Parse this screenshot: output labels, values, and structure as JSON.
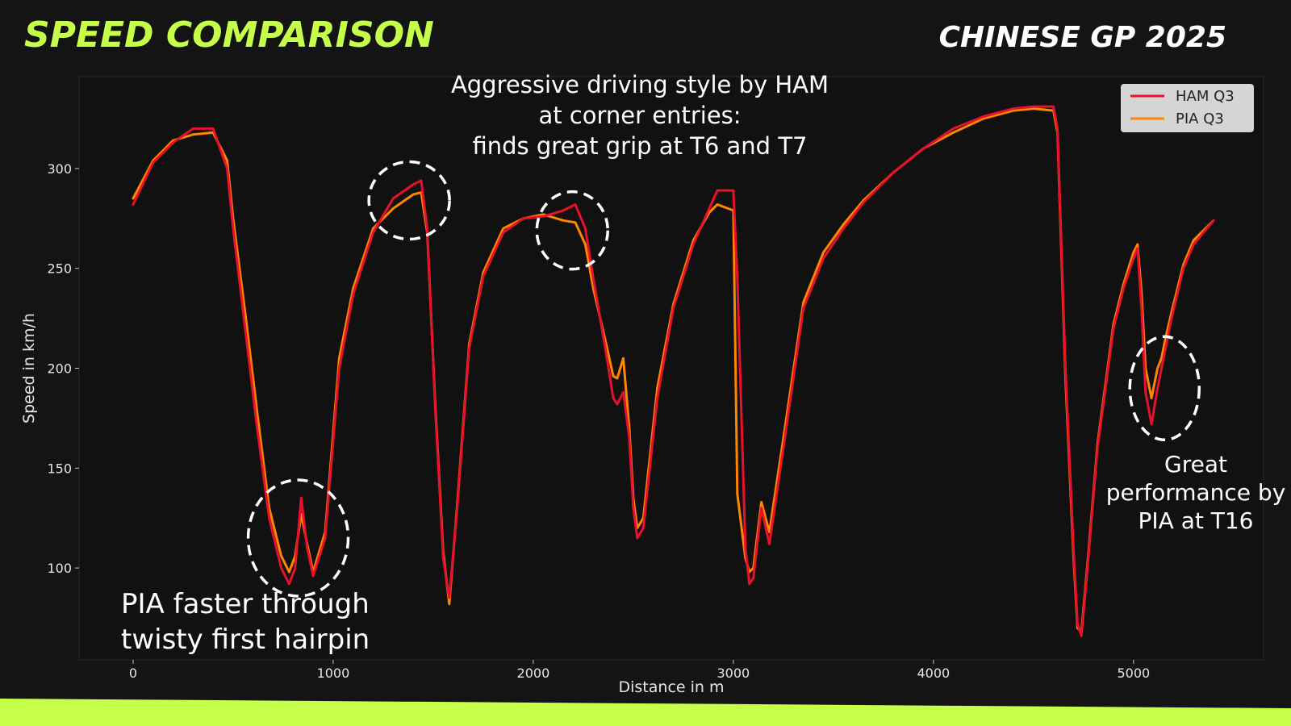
{
  "header": {
    "title": "SPEED COMPARISON",
    "subtitle": "CHINESE GP 2025"
  },
  "colors": {
    "background": "#141414",
    "plot_background": "#111111",
    "accent": "#c6ff4a",
    "ham": "#e8112d",
    "pia": "#ff8700"
  },
  "annotations": [
    {
      "id": "t6t7",
      "lines": [
        "Aggressive driving style by HAM",
        "at corner entries:",
        "finds great grip at T6 and T7"
      ]
    },
    {
      "id": "hairpin",
      "lines": [
        "PIA faster through",
        "twisty first hairpin"
      ]
    },
    {
      "id": "t16",
      "lines": [
        "Great",
        "performance by",
        "PIA at T16"
      ]
    }
  ],
  "highlights": [
    {
      "x": 825,
      "y": 115
    },
    {
      "x": 1380,
      "y": 284
    },
    {
      "x": 2195,
      "y": 269
    },
    {
      "x": 5155,
      "y": 190
    }
  ],
  "chart_data": {
    "type": "line",
    "xlabel": "Distance in m",
    "ylabel": "Speed in km/h",
    "xlim": [
      -270,
      5650
    ],
    "ylim": [
      54,
      346
    ],
    "xticks": [
      0,
      1000,
      2000,
      3000,
      4000,
      5000
    ],
    "yticks": [
      100,
      150,
      200,
      250,
      300
    ],
    "grid": false,
    "legend": "top-right",
    "series": [
      {
        "name": "HAM Q3",
        "color": "#e8112d",
        "x": [
          0,
          100,
          200,
          300,
          400,
          470,
          500,
          560,
          620,
          680,
          740,
          780,
          810,
          840,
          870,
          900,
          960,
          1030,
          1100,
          1200,
          1300,
          1400,
          1440,
          1470,
          1510,
          1550,
          1580,
          1620,
          1680,
          1750,
          1850,
          1950,
          2050,
          2150,
          2210,
          2260,
          2300,
          2360,
          2400,
          2420,
          2450,
          2480,
          2500,
          2520,
          2550,
          2620,
          2700,
          2800,
          2880,
          2920,
          3000,
          3020,
          3060,
          3080,
          3100,
          3140,
          3180,
          3250,
          3350,
          3450,
          3550,
          3650,
          3800,
          3950,
          4100,
          4250,
          4400,
          4500,
          4600,
          4620,
          4660,
          4700,
          4720,
          4740,
          4770,
          4820,
          4900,
          4950,
          5000,
          5020,
          5040,
          5060,
          5090,
          5120,
          5140,
          5160,
          5190,
          5250,
          5300,
          5400
        ],
        "y": [
          282,
          303,
          313,
          320,
          320,
          300,
          270,
          220,
          170,
          125,
          100,
          92,
          100,
          135,
          110,
          96,
          115,
          200,
          237,
          268,
          285,
          292,
          294,
          270,
          180,
          105,
          85,
          130,
          210,
          246,
          268,
          275,
          276,
          279,
          282,
          270,
          245,
          210,
          185,
          182,
          188,
          165,
          130,
          115,
          120,
          185,
          230,
          262,
          280,
          289,
          289,
          245,
          110,
          92,
          95,
          130,
          112,
          160,
          230,
          255,
          270,
          283,
          298,
          310,
          320,
          326,
          330,
          331,
          331,
          320,
          200,
          110,
          72,
          66,
          100,
          160,
          220,
          240,
          255,
          260,
          230,
          188,
          172,
          190,
          200,
          210,
          225,
          250,
          262,
          274
        ]
      },
      {
        "name": "PIA Q3",
        "color": "#ff8700",
        "x": [
          0,
          100,
          200,
          300,
          400,
          470,
          500,
          560,
          620,
          680,
          740,
          780,
          810,
          840,
          870,
          900,
          960,
          1030,
          1100,
          1200,
          1300,
          1400,
          1440,
          1470,
          1510,
          1550,
          1580,
          1620,
          1680,
          1750,
          1850,
          1950,
          2050,
          2150,
          2210,
          2260,
          2300,
          2360,
          2400,
          2420,
          2450,
          2480,
          2500,
          2520,
          2550,
          2620,
          2700,
          2800,
          2880,
          2920,
          3000,
          3020,
          3060,
          3080,
          3100,
          3140,
          3180,
          3250,
          3350,
          3450,
          3550,
          3650,
          3800,
          3950,
          4100,
          4250,
          4400,
          4500,
          4600,
          4620,
          4660,
          4700,
          4720,
          4740,
          4770,
          4820,
          4900,
          4950,
          5000,
          5020,
          5040,
          5060,
          5090,
          5120,
          5140,
          5160,
          5190,
          5250,
          5300,
          5400
        ],
        "y": [
          285,
          304,
          314,
          317,
          318,
          304,
          275,
          228,
          178,
          130,
          106,
          98,
          106,
          127,
          112,
          98,
          118,
          205,
          240,
          270,
          280,
          287,
          288,
          268,
          182,
          108,
          82,
          132,
          212,
          248,
          270,
          275,
          277,
          274,
          273,
          262,
          240,
          214,
          196,
          195,
          205,
          170,
          135,
          120,
          125,
          190,
          232,
          264,
          278,
          282,
          279,
          137,
          105,
          98,
          100,
          133,
          118,
          165,
          233,
          258,
          272,
          284,
          298,
          310,
          318,
          325,
          329,
          330,
          329,
          318,
          195,
          106,
          70,
          68,
          102,
          162,
          222,
          242,
          258,
          262,
          238,
          200,
          185,
          200,
          205,
          215,
          228,
          252,
          264,
          274
        ]
      }
    ]
  }
}
